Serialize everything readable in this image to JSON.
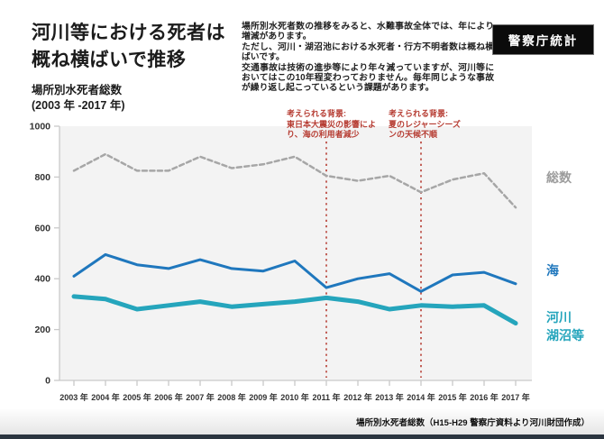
{
  "page": {
    "title": "河川等における死者は\n概ね横ばいで推移",
    "subtitle": "場所別水死者総数\n(2003 年 -2017 年)",
    "description": "場所別水死者数の推移をみると、水難事故全体では、年により増減があります。\nただし、河川・湖沼池における水死者・行方不明者数は概ね横ばいです。\n交通事故は技術の進歩等により年々減っていますが、河川等においてはこの10年程変わっておりません。毎年同じような事故が繰り返し起こっているという課題があります。",
    "badge": "警察庁統計",
    "source_caption": "場所別水死者総数（H15-H29 警察庁資料より河川財団作成）"
  },
  "colors": {
    "total_line": "#a6a6a6",
    "sea_line": "#1f77bd",
    "river_line": "#25a5bc",
    "legend_total": "#9c9c9c",
    "annotation_red": "#b63c32",
    "plot_bg": "#f3f3f3",
    "axis": "#c9c9c9",
    "tick_text": "#333333",
    "badge_bg": "#0b0b0b",
    "footer_strip": "#2b3540"
  },
  "chart_data": {
    "type": "line",
    "title": "場所別水死者総数 (2003年-2017年)",
    "xlabel": "",
    "ylabel": "",
    "categories": [
      "2003 年",
      "2004 年",
      "2005 年",
      "2006 年",
      "2007 年",
      "2008 年",
      "2009 年",
      "2010 年",
      "2011 年",
      "2012 年",
      "2013 年",
      "2014 年",
      "2015 年",
      "2016 年",
      "2017 年"
    ],
    "ylim": [
      0,
      1000
    ],
    "yticks": [
      0,
      200,
      400,
      600,
      800,
      1000
    ],
    "grid": false,
    "legend_position": "right",
    "series": [
      {
        "name": "総数",
        "style": "dashed",
        "color": "#a6a6a6",
        "width": 2.5,
        "values": [
          825,
          890,
          825,
          825,
          880,
          835,
          850,
          880,
          805,
          785,
          805,
          740,
          790,
          815,
          680
        ]
      },
      {
        "name": "海",
        "style": "solid",
        "color": "#1f77bd",
        "width": 3,
        "values": [
          410,
          495,
          455,
          440,
          475,
          440,
          430,
          470,
          365,
          400,
          420,
          350,
          415,
          425,
          380
        ]
      },
      {
        "name": "河川湖沼等",
        "style": "solid",
        "color": "#25a5bc",
        "width": 5,
        "values": [
          330,
          320,
          280,
          295,
          310,
          290,
          300,
          310,
          325,
          310,
          280,
          295,
          290,
          295,
          225
        ]
      }
    ],
    "vlines": [
      {
        "at_category": "2011 年",
        "index": 8,
        "label": "考えられる背景:\n東日本大震災の影響によ\nり、海の利用者減少"
      },
      {
        "at_category": "2014 年",
        "index": 11,
        "label": "考えられる背景:\n夏のレジャーシーズ\nンの天候不順"
      }
    ],
    "legend_labels": {
      "total": "総数",
      "sea": "海",
      "river": "河川\n湖沼等"
    }
  }
}
